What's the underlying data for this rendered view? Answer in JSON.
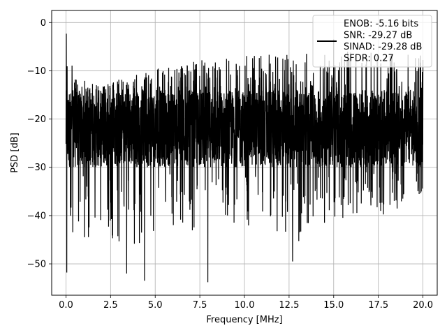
{
  "chart_data": {
    "type": "line",
    "title": "",
    "xlabel": "Frequency [MHz]",
    "ylabel": "PSD [dB]",
    "xlim": [
      -0.8,
      20.8
    ],
    "ylim": [
      -56.5,
      2.5
    ],
    "grid": true,
    "legend": {
      "placement": "top-right",
      "entries": [
        "ENOB: -5.16 bits",
        "SNR: -29.27 dB",
        "SINAD: -29.28 dB",
        "SFDR: 0.27"
      ]
    },
    "x_ticks": [
      0.0,
      2.5,
      5.0,
      7.5,
      10.0,
      12.5,
      15.0,
      17.5,
      20.0
    ],
    "x_tick_labels": [
      "0.0",
      "2.5",
      "5.0",
      "7.5",
      "10.0",
      "12.5",
      "15.0",
      "17.5",
      "20.0"
    ],
    "y_ticks": [
      0,
      -10,
      -20,
      -30,
      -40,
      -50
    ],
    "y_tick_labels": [
      "0",
      "−10",
      "−20",
      "−30",
      "−40",
      "−50"
    ],
    "series": [
      {
        "color": "#000000",
        "x_range": [
          0.0,
          20.0
        ],
        "envelope": {
          "x": [
            0.0,
            0.5,
            1.0,
            2.0,
            3.0,
            4.0,
            5.0,
            6.0,
            7.0,
            8.0,
            9.0,
            10.0,
            11.0,
            12.0,
            13.0,
            14.0,
            15.0,
            16.0,
            17.0,
            18.0,
            19.0,
            20.0
          ],
          "upper": [
            -2.3,
            -11.5,
            -12.0,
            -13.0,
            -11.5,
            -10.5,
            -9.0,
            -8.5,
            -8.0,
            -7.5,
            -7.0,
            -6.5,
            -6.5,
            -6.5,
            -6.5,
            -6.0,
            -6.0,
            -6.0,
            -6.0,
            -6.5,
            -6.0,
            -6.5
          ],
          "lower": [
            -52.0,
            -48.0,
            -47.0,
            -45.0,
            -46.0,
            -47.0,
            -43.0,
            -43.0,
            -43.0,
            -44.0,
            -43.0,
            -42.0,
            -43.0,
            -44.0,
            -46.0,
            -42.0,
            -41.0,
            -40.0,
            -39.0,
            -40.0,
            -39.0,
            -36.0
          ],
          "core_upper": -14.0,
          "core_lower": -30.0
        },
        "notable_points": [
          {
            "x": 0.02,
            "y": -2.3
          },
          {
            "x": 0.05,
            "y": -51.8
          },
          {
            "x": 3.4,
            "y": -52.0
          },
          {
            "x": 4.4,
            "y": -53.5
          },
          {
            "x": 7.95,
            "y": -53.8
          },
          {
            "x": 12.7,
            "y": -49.5
          },
          {
            "x": 15.0,
            "y": -3.5
          }
        ]
      }
    ]
  }
}
